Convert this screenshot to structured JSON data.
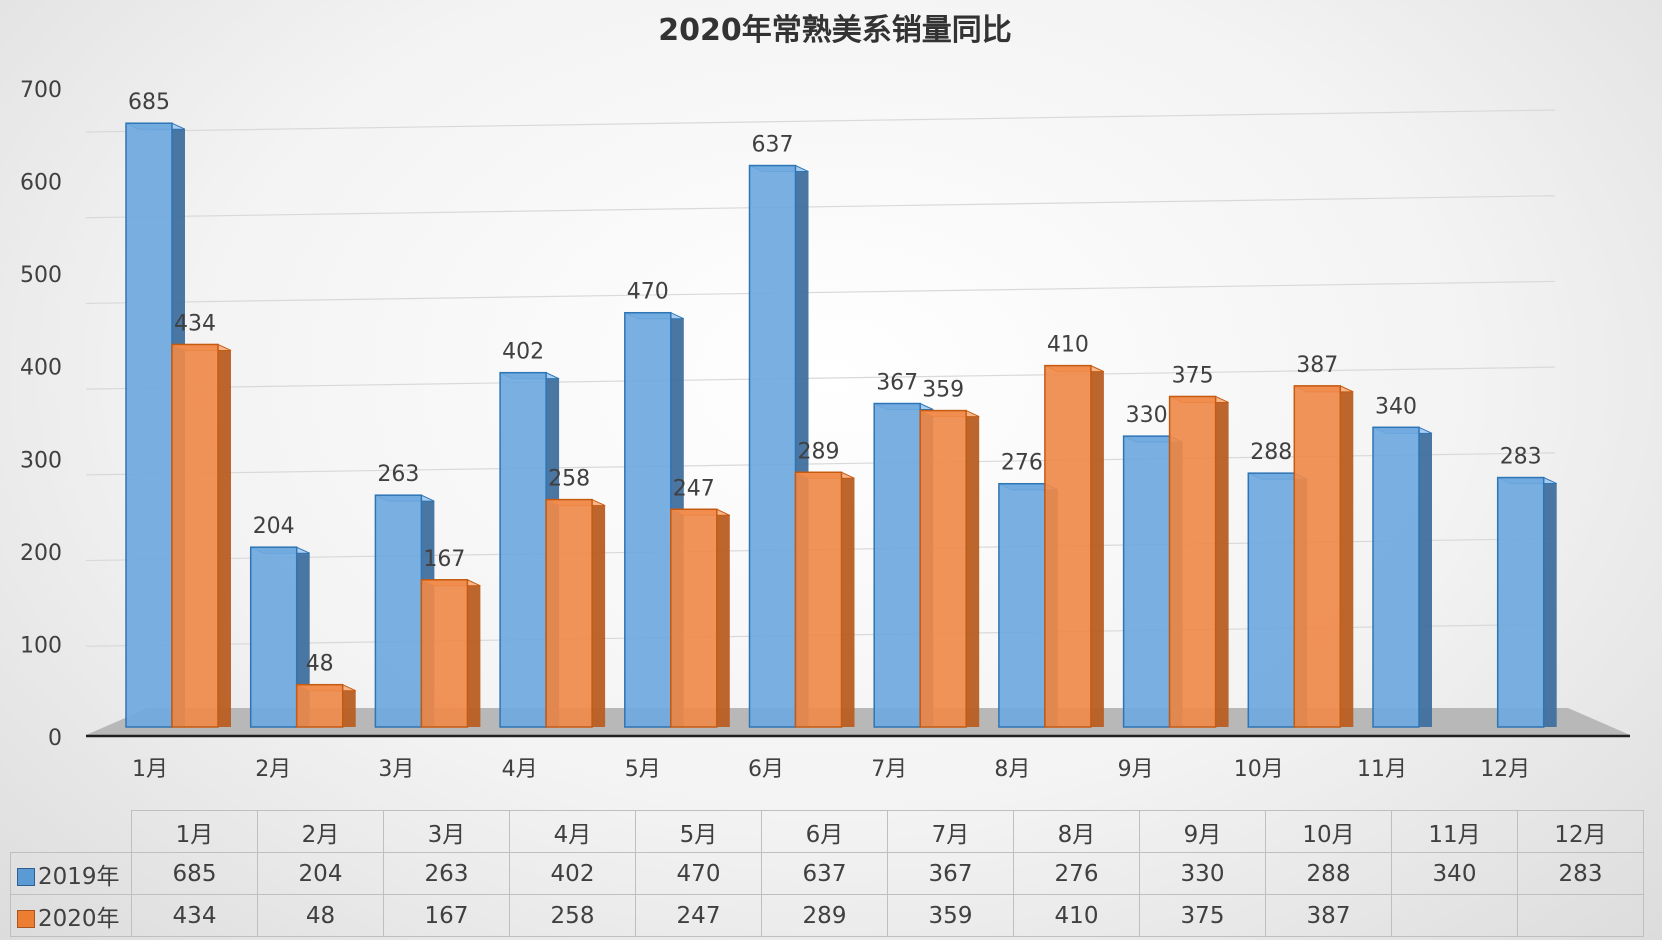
{
  "chart_data": {
    "type": "bar",
    "title": "2020年常熟美系销量同比",
    "categories": [
      "1月",
      "2月",
      "3月",
      "4月",
      "5月",
      "6月",
      "7月",
      "8月",
      "9月",
      "10月",
      "11月",
      "12月"
    ],
    "series": [
      {
        "name": "2019年",
        "color": "#5b9bd5",
        "values": [
          685,
          204,
          263,
          402,
          470,
          637,
          367,
          276,
          330,
          288,
          340,
          283
        ]
      },
      {
        "name": "2020年",
        "color": "#ed7d31",
        "values": [
          434,
          48,
          167,
          258,
          247,
          289,
          359,
          410,
          375,
          387,
          null,
          null
        ]
      }
    ],
    "ylim": [
      0,
      700
    ],
    "yticks": [
      0,
      100,
      200,
      300,
      400,
      500,
      600,
      700
    ],
    "grid": true,
    "legend": "data-table"
  },
  "table": {
    "rows": [
      {
        "label": "2019年",
        "cells": [
          "685",
          "204",
          "263",
          "402",
          "470",
          "637",
          "367",
          "276",
          "330",
          "288",
          "340",
          "283"
        ]
      },
      {
        "label": "2020年",
        "cells": [
          "434",
          "48",
          "167",
          "258",
          "247",
          "289",
          "359",
          "410",
          "375",
          "387",
          "",
          ""
        ]
      }
    ]
  }
}
